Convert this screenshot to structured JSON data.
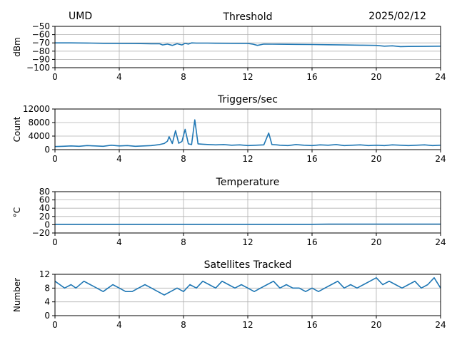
{
  "header": {
    "site": "UMD",
    "date": "2025/02/12"
  },
  "colors": {
    "series": "#1f77b4",
    "grid": "#b0b0b0",
    "axis": "#000000"
  },
  "chart_data": [
    {
      "type": "line",
      "title": "Threshold",
      "ylabel": "dBm",
      "xlabel": "",
      "xlim": [
        0,
        24
      ],
      "ylim": [
        -100,
        -50
      ],
      "xticks": [
        0,
        4,
        8,
        12,
        16,
        20,
        24
      ],
      "yticks": [
        -50,
        -60,
        -70,
        -80,
        -90,
        -100
      ],
      "ytick_labels": [
        "−50",
        "−60",
        "−70",
        "−80",
        "−90",
        "−100"
      ],
      "grid": true,
      "series": [
        {
          "x": [
            0,
            1,
            2,
            3,
            4,
            5,
            6,
            6.5,
            6.7,
            7,
            7.3,
            7.6,
            7.9,
            8.1,
            8.3,
            8.5,
            8.8,
            9.5,
            10,
            11,
            12,
            12.3,
            12.6,
            13,
            14,
            15,
            16,
            17,
            18,
            19,
            20,
            20.5,
            21,
            21.5,
            22,
            23,
            24
          ],
          "y": [
            -70,
            -70,
            -70.2,
            -70.5,
            -70.6,
            -70.8,
            -71,
            -71,
            -72.5,
            -71.5,
            -73,
            -71,
            -72.5,
            -70.5,
            -71.5,
            -70,
            -70.3,
            -70.3,
            -70.4,
            -70.5,
            -70.6,
            -71.5,
            -73,
            -71.5,
            -71.6,
            -71.8,
            -72,
            -72.2,
            -72.5,
            -72.8,
            -73,
            -74,
            -73.5,
            -74.5,
            -74.3,
            -74.2,
            -74
          ]
        }
      ]
    },
    {
      "type": "line",
      "title": "Triggers/sec",
      "ylabel": "Count",
      "xlabel": "",
      "xlim": [
        0,
        24
      ],
      "ylim": [
        0,
        12000
      ],
      "xticks": [
        0,
        4,
        8,
        12,
        16,
        20,
        24
      ],
      "yticks": [
        0,
        4000,
        8000,
        12000
      ],
      "ytick_labels": [
        "0",
        "4000",
        "8000",
        "12000"
      ],
      "grid": true,
      "series": [
        {
          "x": [
            0,
            0.5,
            1,
            1.5,
            2,
            2.5,
            3,
            3.5,
            4,
            4.5,
            5,
            5.5,
            6,
            6.5,
            6.8,
            7,
            7.1,
            7.3,
            7.5,
            7.7,
            7.9,
            8.1,
            8.3,
            8.5,
            8.7,
            8.9,
            9.2,
            9.6,
            10,
            10.5,
            11,
            11.5,
            12,
            12.5,
            13,
            13.3,
            13.5,
            13.8,
            14,
            14.5,
            15,
            15.5,
            16,
            16.5,
            17,
            17.5,
            18,
            18.5,
            19,
            19.5,
            20,
            20.5,
            21,
            21.5,
            22,
            22.5,
            23,
            23.5,
            24
          ],
          "y": [
            900,
            1000,
            1100,
            1000,
            1200,
            1100,
            1000,
            1300,
            1100,
            1200,
            1000,
            1100,
            1200,
            1500,
            1800,
            2500,
            3800,
            1800,
            5600,
            1900,
            2400,
            6000,
            1700,
            1500,
            8800,
            1700,
            1600,
            1500,
            1400,
            1500,
            1300,
            1400,
            1200,
            1300,
            1400,
            4900,
            1500,
            1400,
            1300,
            1200,
            1500,
            1300,
            1200,
            1400,
            1300,
            1500,
            1200,
            1300,
            1400,
            1200,
            1300,
            1200,
            1400,
            1300,
            1200,
            1300,
            1400,
            1200,
            1300
          ]
        }
      ]
    },
    {
      "type": "line",
      "title": "Temperature",
      "ylabel": "°C",
      "xlabel": "",
      "xlim": [
        0,
        24
      ],
      "ylim": [
        -20,
        80
      ],
      "xticks": [
        0,
        4,
        8,
        12,
        16,
        20,
        24
      ],
      "yticks": [
        -20,
        0,
        20,
        40,
        60,
        80
      ],
      "ytick_labels": [
        "−20",
        "0",
        "20",
        "40",
        "60",
        "80"
      ],
      "grid": true,
      "series": [
        {
          "x": [
            0,
            4,
            8,
            12,
            16,
            17,
            20,
            24
          ],
          "y": [
            1,
            1,
            1,
            1,
            1,
            1.5,
            1.5,
            1.5
          ]
        }
      ]
    },
    {
      "type": "line",
      "title": "Satellites Tracked",
      "ylabel": "Number",
      "xlabel": "",
      "xlim": [
        0,
        24
      ],
      "ylim": [
        0,
        12
      ],
      "xticks": [
        0,
        4,
        8,
        12,
        16,
        20,
        24
      ],
      "yticks": [
        0,
        4,
        8,
        12
      ],
      "ytick_labels": [
        "0",
        "4",
        "8",
        "12"
      ],
      "grid": true,
      "series": [
        {
          "x": [
            0,
            0.3,
            0.6,
            1,
            1.3,
            1.8,
            2.2,
            2.6,
            3,
            3.3,
            3.6,
            4,
            4.4,
            4.8,
            5.2,
            5.6,
            6,
            6.4,
            6.8,
            7.2,
            7.6,
            8,
            8.4,
            8.8,
            9.2,
            9.6,
            10,
            10.4,
            10.8,
            11.2,
            11.6,
            12,
            12.4,
            12.8,
            13.2,
            13.6,
            14,
            14.4,
            14.8,
            15.2,
            15.6,
            16,
            16.4,
            16.8,
            17.2,
            17.6,
            18,
            18.4,
            18.8,
            19.2,
            19.6,
            20,
            20.4,
            20.8,
            21.2,
            21.6,
            22,
            22.4,
            22.8,
            23.2,
            23.6,
            24
          ],
          "y": [
            10,
            9,
            8,
            9,
            8,
            10,
            9,
            8,
            7,
            8,
            9,
            8,
            7,
            7,
            8,
            9,
            8,
            7,
            6,
            7,
            8,
            7,
            9,
            8,
            10,
            9,
            8,
            10,
            9,
            8,
            9,
            8,
            7,
            8,
            9,
            10,
            8,
            9,
            8,
            8,
            7,
            8,
            7,
            8,
            9,
            10,
            8,
            9,
            8,
            9,
            10,
            11,
            9,
            10,
            9,
            8,
            9,
            10,
            8,
            9,
            11,
            8
          ]
        }
      ]
    }
  ]
}
